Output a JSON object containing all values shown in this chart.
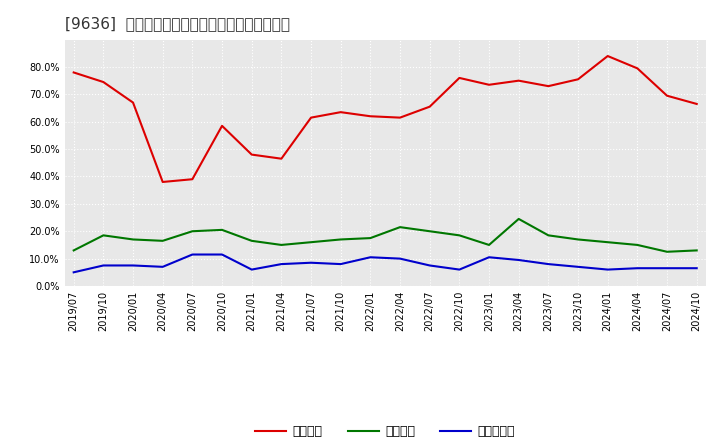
{
  "title": "[9636]  流動比率、当座比率、現預金比率の推移",
  "x_labels": [
    "2019/07",
    "2019/10",
    "2020/01",
    "2020/04",
    "2020/07",
    "2020/10",
    "2021/01",
    "2021/04",
    "2021/07",
    "2021/10",
    "2022/01",
    "2022/04",
    "2022/07",
    "2022/10",
    "2023/01",
    "2023/04",
    "2023/07",
    "2023/10",
    "2024/01",
    "2024/04",
    "2024/07",
    "2024/10"
  ],
  "ryudo": [
    78.0,
    74.5,
    67.0,
    38.0,
    39.0,
    58.5,
    48.0,
    46.5,
    61.5,
    63.5,
    62.0,
    61.5,
    65.5,
    76.0,
    73.5,
    75.0,
    73.0,
    75.5,
    84.0,
    79.5,
    69.5,
    66.5
  ],
  "touza": [
    13.0,
    18.5,
    17.0,
    16.5,
    20.0,
    20.5,
    16.5,
    15.0,
    16.0,
    17.0,
    17.5,
    21.5,
    20.0,
    18.5,
    15.0,
    24.5,
    18.5,
    17.0,
    16.0,
    15.0,
    12.5,
    13.0
  ],
  "genkin": [
    5.0,
    7.5,
    7.5,
    7.0,
    11.5,
    11.5,
    6.0,
    8.0,
    8.5,
    8.0,
    10.5,
    10.0,
    7.5,
    6.0,
    10.5,
    9.5,
    8.0,
    7.0,
    6.0,
    6.5,
    6.5,
    6.5
  ],
  "ryudo_color": "#dd0000",
  "touza_color": "#007700",
  "genkin_color": "#0000cc",
  "bg_color": "#ffffff",
  "plot_bg_color": "#e8e8e8",
  "grid_color": "#ffffff",
  "ylim": [
    0,
    90
  ],
  "yticks": [
    0,
    10,
    20,
    30,
    40,
    50,
    60,
    70,
    80
  ],
  "legend_labels": [
    "流動比率",
    "当座比率",
    "現預金比率"
  ],
  "title_fontsize": 11,
  "tick_fontsize": 7,
  "legend_fontsize": 9
}
